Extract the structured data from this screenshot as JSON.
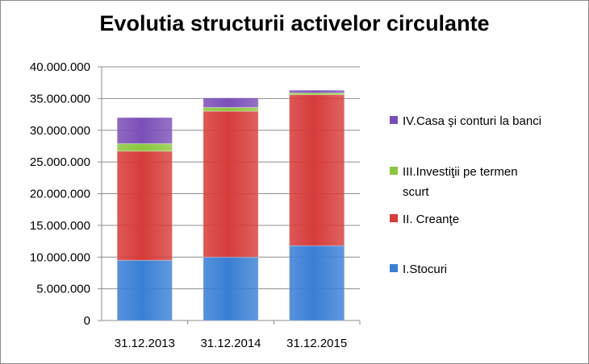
{
  "chart_data": {
    "type": "bar",
    "stacked": true,
    "title": "Evolutia structurii activelor circulante",
    "categories": [
      "31.12.2013",
      "31.12.2014",
      "31.12.2015"
    ],
    "series": [
      {
        "name": "I.Stocuri",
        "values": [
          9500000,
          10000000,
          11800000
        ],
        "color": "#3a7fd5"
      },
      {
        "name": "II. Creanţe",
        "values": [
          17200000,
          23000000,
          23800000
        ],
        "color": "#d63c3a"
      },
      {
        "name": "III.Investiţii pe termen scurt",
        "values": [
          1200000,
          600000,
          300000
        ],
        "color": "#8cc63f"
      },
      {
        "name": "IV.Casa şi conturi la banci",
        "values": [
          4100000,
          1500000,
          400000
        ],
        "color": "#7b4fb8"
      }
    ],
    "legend_items": [
      {
        "lines": [
          "IV.Casa şi conturi la banci"
        ],
        "color": "#7b4fb8"
      },
      {
        "lines": [
          "III.Investiţii pe termen",
          "scurt"
        ],
        "color": "#8cc63f"
      },
      {
        "lines": [
          "II. Creanţe"
        ],
        "color": "#d63c3a"
      },
      {
        "lines": [
          "I.Stocuri"
        ],
        "color": "#3a7fd5"
      }
    ],
    "y_ticks": [
      "0",
      "5.000.000",
      "10.000.000",
      "15.000.000",
      "20.000.000",
      "25.000.000",
      "30.000.000",
      "35.000.000",
      "40.000.000"
    ],
    "ylim": [
      0,
      40000000
    ],
    "grid": true,
    "legend_position": "right"
  }
}
